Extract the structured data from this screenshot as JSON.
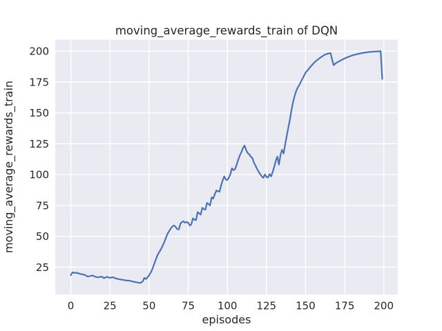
{
  "chart_data": {
    "type": "line",
    "title": "moving_average_rewards_train of DQN",
    "xlabel": "episodes",
    "ylabel": "moving_average_rewards_train",
    "x_ticks": [
      0,
      25,
      50,
      75,
      100,
      125,
      150,
      175,
      200
    ],
    "y_ticks": [
      25,
      50,
      75,
      100,
      125,
      150,
      175,
      200
    ],
    "xlim": [
      -9.95,
      208.95
    ],
    "ylim": [
      2.8,
      209.3
    ],
    "grid": true,
    "legend_position": "none",
    "line_color": "#4c72b0",
    "plot_background": "#eaeaf2",
    "figure_background": "#ffffff",
    "grid_color": "#ffffff",
    "text_color": "#262626",
    "series": [
      {
        "name": "moving_average_rewards_train",
        "x_start": 0,
        "x_step": 1,
        "values": [
          18.5,
          20.8,
          20.5,
          20.3,
          20.5,
          19.9,
          19.6,
          19.3,
          19.0,
          18.7,
          18.0,
          17.4,
          17.7,
          18.1,
          18.3,
          17.6,
          17.1,
          16.8,
          17.0,
          17.2,
          17.3,
          16.1,
          16.5,
          17.2,
          16.8,
          16.3,
          16.7,
          16.9,
          16.2,
          15.8,
          15.5,
          15.2,
          15.0,
          14.8,
          14.6,
          14.3,
          14.1,
          14.2,
          13.9,
          13.6,
          13.3,
          13.0,
          12.8,
          12.5,
          12.2,
          12.6,
          13.6,
          16.3,
          15.4,
          16.9,
          18.3,
          20.6,
          23.1,
          26.5,
          30.1,
          33.6,
          36.2,
          38.2,
          40.6,
          43.2,
          46.2,
          49.6,
          52.6,
          54.6,
          56.6,
          58.1,
          58.8,
          57.6,
          55.9,
          55.6,
          60.1,
          61.6,
          62.2,
          61.1,
          61.6,
          61.1,
          58.7,
          59.6,
          64.6,
          63.6,
          63.1,
          69.6,
          68.6,
          67.6,
          73.1,
          72.1,
          71.6,
          77.1,
          76.1,
          75.1,
          81.6,
          80.6,
          84.1,
          87.1,
          86.6,
          86.1,
          91.1,
          95.1,
          98.6,
          96.1,
          95.6,
          97.6,
          100.6,
          105.1,
          103.6,
          104.6,
          108.1,
          112.1,
          115.6,
          118.1,
          121.6,
          123.6,
          120.1,
          117.6,
          116.4,
          114.6,
          113.4,
          109.6,
          107.4,
          104.6,
          102.4,
          100.4,
          98.6,
          97.4,
          100.1,
          98.1,
          97.6,
          100.4,
          98.6,
          102.1,
          106.4,
          111.4,
          114.6,
          108.1,
          116.1,
          120.1,
          117.1,
          124.6,
          131.4,
          138.1,
          144.6,
          152.1,
          158.6,
          163.6,
          167.6,
          170.6,
          172.6,
          175.1,
          177.6,
          180.1,
          182.6,
          184.1,
          185.6,
          187.1,
          188.6,
          190.1,
          191.3,
          192.4,
          193.4,
          194.4,
          195.3,
          196.1,
          196.9,
          197.5,
          197.9,
          198.2,
          198.4,
          193.1,
          188.6,
          189.9,
          190.8,
          191.5,
          192.2,
          192.9,
          193.5,
          194.1,
          194.7,
          195.2,
          195.7,
          196.2,
          196.6,
          197.0,
          197.3,
          197.6,
          197.9,
          198.2,
          198.5,
          198.7,
          198.9,
          199.1,
          199.3,
          199.4,
          199.5,
          199.6,
          199.7,
          199.8,
          199.8,
          199.9,
          199.9,
          177.5
        ]
      }
    ]
  }
}
